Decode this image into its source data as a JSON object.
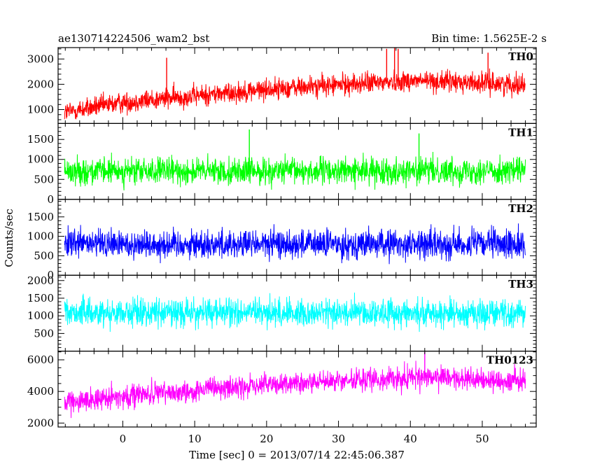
{
  "chart_data": {
    "type": "line",
    "title_left": "ae130714224506_wam2_bst",
    "title_right": "Bin time: 1.5625E-2 s",
    "xlabel": "Time [sec] 0 = 2013/07/14 22:45:06.387",
    "ylabel": "Counts/sec",
    "xlim": [
      -9,
      57.5
    ],
    "x_data_range": [
      -8.1,
      56.0
    ],
    "bin_time_s": 0.015625,
    "x_ticks": [
      0,
      10,
      20,
      30,
      40,
      50
    ],
    "x_minor_step": 2,
    "panels": [
      {
        "name": "TH0",
        "color": "#ff0000",
        "ylim": [
          450,
          3450
        ],
        "y_ticks": [
          1000,
          2000,
          3000
        ],
        "y_minor_step": 200,
        "trend": [
          [
            -8,
            900
          ],
          [
            0,
            1280
          ],
          [
            20,
            1800
          ],
          [
            40,
            2150
          ],
          [
            56,
            2000
          ]
        ],
        "spread": 380,
        "spikes": [
          [
            6.1,
            3050
          ],
          [
            36.7,
            3400
          ],
          [
            37.8,
            3450
          ],
          [
            38.3,
            3400
          ],
          [
            50.8,
            3250
          ]
        ]
      },
      {
        "name": "TH1",
        "color": "#00ff00",
        "ylim": [
          0,
          1900
        ],
        "y_ticks": [
          0,
          500,
          1000,
          1500
        ],
        "y_minor_step": 100,
        "trend": [
          [
            -8,
            700
          ],
          [
            56,
            720
          ]
        ],
        "spread": 300,
        "spikes": [
          [
            17.6,
            1750
          ],
          [
            41.2,
            1650
          ]
        ]
      },
      {
        "name": "TH2",
        "color": "#0000ff",
        "ylim": [
          0,
          1950
        ],
        "y_ticks": [
          0,
          500,
          1000,
          1500
        ],
        "y_minor_step": 100,
        "trend": [
          [
            -8,
            800
          ],
          [
            56,
            800
          ]
        ],
        "spread": 340,
        "spikes": []
      },
      {
        "name": "TH3",
        "color": "#00ffff",
        "ylim": [
          0,
          2150
        ],
        "y_ticks": [
          500,
          1000,
          1500,
          2000
        ],
        "y_minor_step": 100,
        "trend": [
          [
            -8,
            1100
          ],
          [
            56,
            1080
          ]
        ],
        "spread": 360,
        "spikes": []
      },
      {
        "name": "TH0123",
        "color": "#ff00ff",
        "ylim": [
          1750,
          6550
        ],
        "y_ticks": [
          2000,
          4000,
          6000
        ],
        "y_minor_step": 500,
        "trend": [
          [
            -8,
            3300
          ],
          [
            0,
            3700
          ],
          [
            20,
            4400
          ],
          [
            40,
            4900
          ],
          [
            56,
            4650
          ]
        ],
        "spread": 650,
        "spikes": [
          [
            42.0,
            6500
          ]
        ]
      }
    ]
  }
}
